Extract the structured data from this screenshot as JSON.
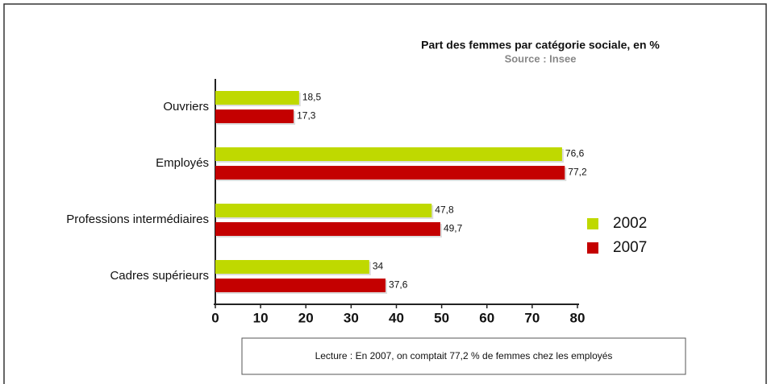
{
  "chart_data": {
    "type": "hbar",
    "title": "Part des femmes par catégorie sociale, en %",
    "subtitle": "Source : Insee",
    "categories": [
      "Ouvriers",
      "Employés",
      "Professions intermédiaires",
      "Cadres supérieurs"
    ],
    "series": [
      {
        "name": "2002",
        "color": "#bfd900",
        "values": [
          18.5,
          76.6,
          47.8,
          34
        ],
        "value_labels": [
          "18,5",
          "76,6",
          "47,8",
          "34"
        ]
      },
      {
        "name": "2007",
        "color": "#c40000",
        "values": [
          17.3,
          77.2,
          49.7,
          37.6
        ],
        "value_labels": [
          "17,3",
          "77,2",
          "49,7",
          "37,6"
        ]
      }
    ],
    "xlim": [
      0,
      80
    ],
    "xticks": [
      0,
      10,
      20,
      30,
      40,
      50,
      60,
      70,
      80
    ],
    "legend": "right",
    "annotation": "Lecture : En 2007, on comptait 77,2 % de femmes chez les employés"
  }
}
